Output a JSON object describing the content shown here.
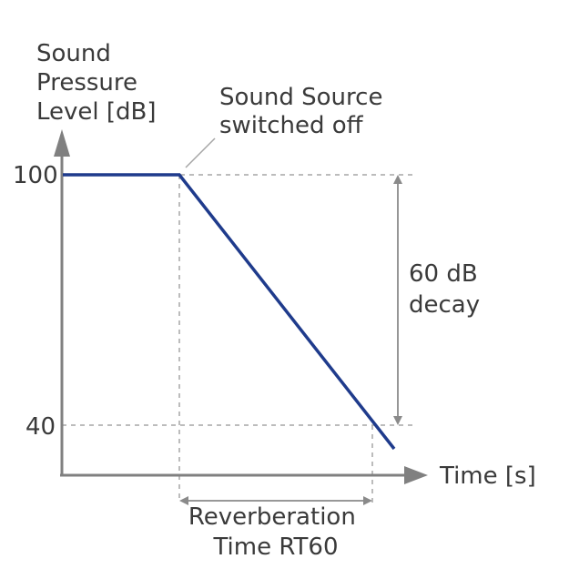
{
  "y_axis_label": [
    "Sound",
    "Pressure",
    "Level [dB]"
  ],
  "x_axis_label": "Time [s]",
  "y_tick_labels": [
    "100",
    "40"
  ],
  "annotations": {
    "source_off": [
      "Sound Source",
      "switched off"
    ],
    "decay": [
      "60 dB",
      "decay"
    ],
    "reverb_time": [
      "Reverberation",
      "Time RT60"
    ]
  },
  "colors": {
    "curve": "#1f3b8c",
    "axis": "#808080",
    "guides": "#a6a6a6",
    "text": "#3a3a3a"
  }
}
